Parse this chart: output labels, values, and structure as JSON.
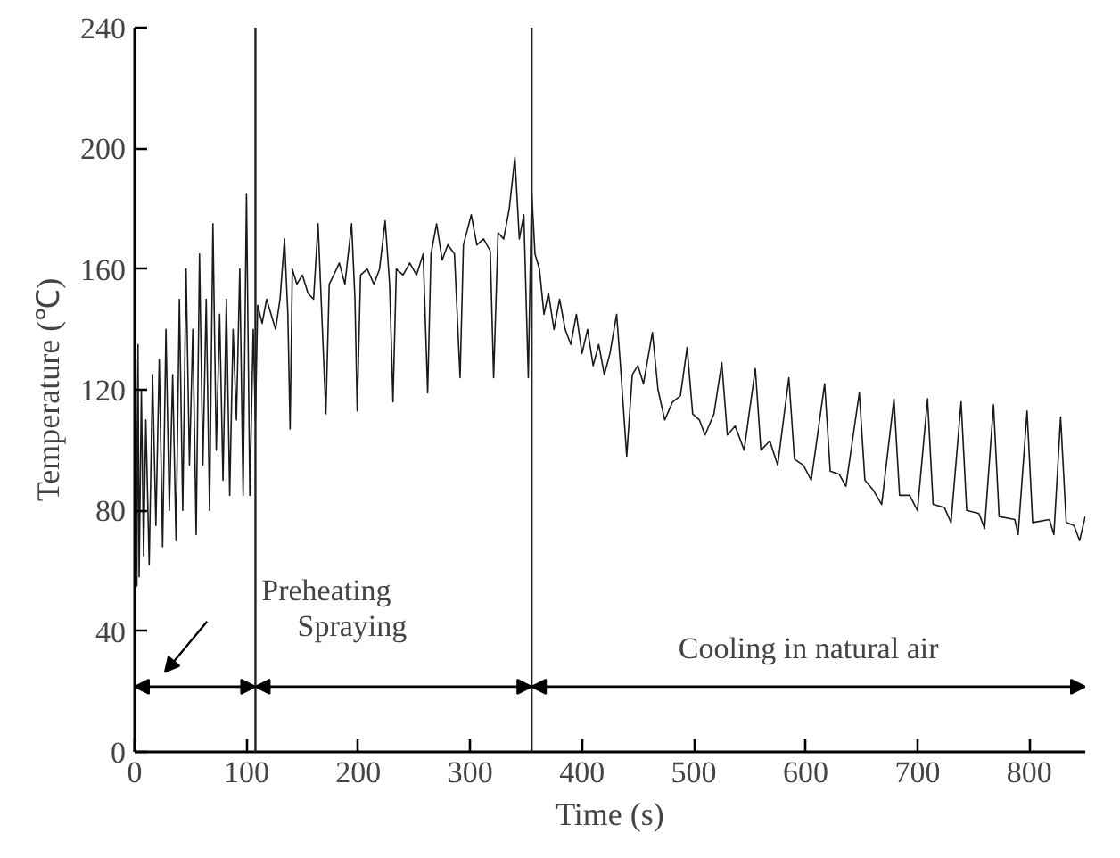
{
  "chart_data": {
    "type": "line",
    "xlabel": "Time (s)",
    "ylabel": "Temperature (℃)",
    "xlim": [
      0,
      850
    ],
    "xticks": [
      0,
      100,
      200,
      300,
      400,
      500,
      600,
      700,
      800
    ],
    "ylim": [
      0,
      240
    ],
    "yticks": [
      0,
      40,
      80,
      120,
      160,
      200,
      240
    ],
    "grid": false,
    "series": [
      {
        "color": "#1a1a1a",
        "x": [
          0,
          1,
          2,
          3,
          4,
          6,
          8,
          10,
          13,
          16,
          19,
          22,
          25,
          28,
          31,
          34,
          37,
          40,
          43,
          46,
          49,
          52,
          55,
          58,
          61,
          64,
          67,
          70,
          73,
          76,
          79,
          82,
          85,
          88,
          91,
          94,
          97,
          100,
          103,
          106,
          108,
          110,
          114,
          118,
          122,
          126,
          130,
          134,
          137,
          139,
          141,
          145,
          150,
          155,
          160,
          164,
          167,
          171,
          174,
          178,
          183,
          188,
          194,
          197,
          199,
          202,
          208,
          214,
          219,
          224,
          228,
          231,
          234,
          240,
          246,
          252,
          258,
          262,
          265,
          270,
          275,
          280,
          286,
          291,
          294,
          301,
          306,
          312,
          318,
          321,
          325,
          330,
          335,
          340,
          344,
          348,
          352,
          355,
          358,
          362,
          366,
          370,
          375,
          380,
          385,
          390,
          395,
          400,
          405,
          410,
          415,
          420,
          425,
          431,
          435,
          440,
          445,
          450,
          455,
          463,
          468,
          474,
          481,
          488,
          494,
          499,
          505,
          510,
          518,
          525,
          530,
          537,
          545,
          555,
          560,
          568,
          575,
          585,
          590,
          598,
          605,
          617,
          622,
          630,
          636,
          648,
          653,
          660,
          668,
          679,
          684,
          693,
          700,
          709,
          714,
          724,
          730,
          739,
          744,
          755,
          760,
          768,
          773,
          787,
          790,
          798,
          803,
          818,
          822,
          828,
          833,
          840,
          845,
          850
        ],
        "values": [
          70,
          130,
          55,
          135,
          58,
          120,
          65,
          110,
          62,
          125,
          75,
          130,
          68,
          140,
          80,
          125,
          70,
          150,
          80,
          160,
          95,
          140,
          72,
          165,
          95,
          150,
          80,
          175,
          100,
          145,
          90,
          150,
          85,
          140,
          110,
          160,
          85,
          185,
          85,
          140,
          110,
          148,
          142,
          150,
          145,
          140,
          150,
          170,
          145,
          107,
          160,
          155,
          158,
          152,
          150,
          175,
          148,
          112,
          155,
          158,
          162,
          155,
          175,
          150,
          113,
          158,
          160,
          155,
          160,
          176,
          155,
          116,
          160,
          158,
          162,
          158,
          165,
          119,
          165,
          175,
          163,
          168,
          165,
          124,
          168,
          178,
          168,
          170,
          166,
          124,
          172,
          170,
          180,
          197,
          170,
          178,
          124,
          186,
          165,
          160,
          145,
          152,
          140,
          150,
          140,
          135,
          145,
          132,
          140,
          128,
          135,
          125,
          132,
          145,
          125,
          98,
          125,
          128,
          122,
          139,
          120,
          110,
          116,
          118,
          134,
          112,
          110,
          105,
          112,
          129,
          105,
          108,
          100,
          127,
          100,
          103,
          95,
          124,
          97,
          95,
          90,
          122,
          93,
          92,
          88,
          119,
          90,
          87,
          82,
          117,
          85,
          85,
          80,
          117,
          82,
          81,
          76,
          116,
          80,
          79,
          74,
          115,
          78,
          77,
          72,
          113,
          76,
          77,
          72,
          111,
          76,
          75,
          70,
          78
        ]
      }
    ],
    "ref_lines": [
      {
        "axis": "x",
        "value": 108
      },
      {
        "axis": "x",
        "value": 355
      }
    ],
    "annotations": [
      "Preheating",
      "Spraying",
      "Cooling in natural air"
    ]
  }
}
